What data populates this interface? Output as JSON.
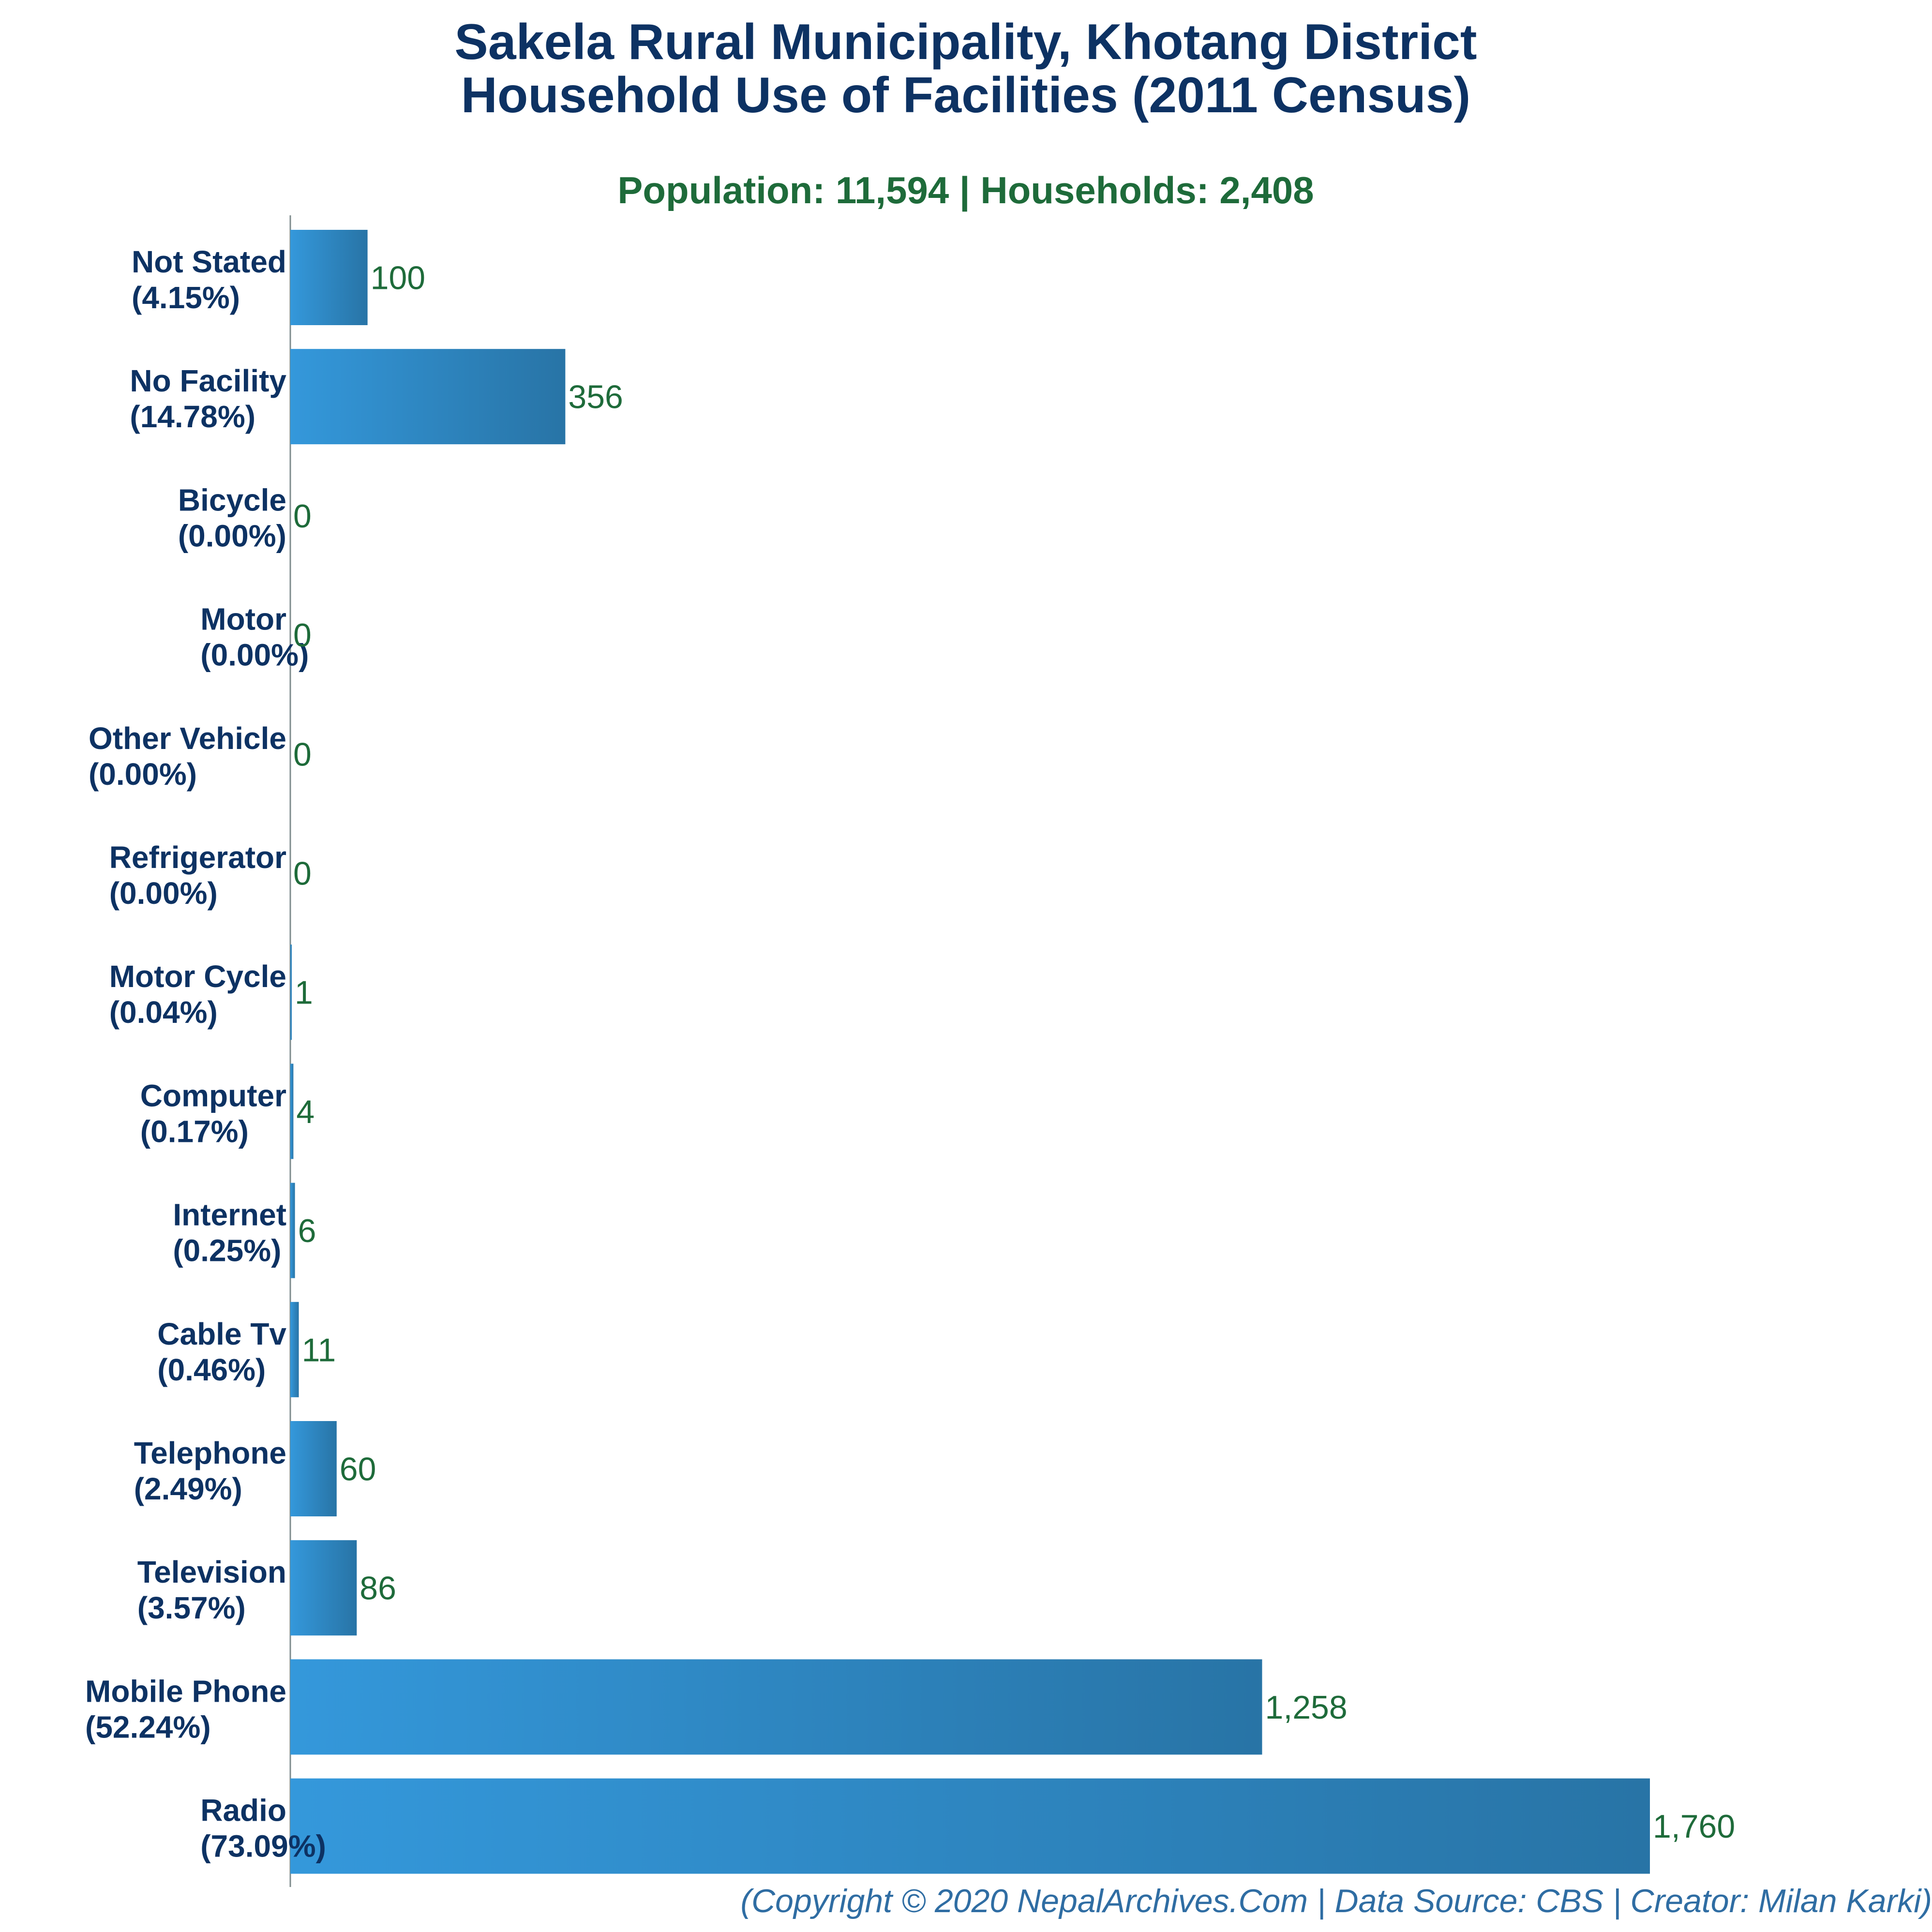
{
  "chart_data": {
    "type": "bar",
    "orientation": "horizontal",
    "title_lines": [
      "Sakela Rural Municipality, Khotang District",
      "Household Use of Facilities (2011 Census)"
    ],
    "subtitle": "Population: 11,594 | Households: 2,408",
    "categories": [
      "Not Stated",
      "No Facility",
      "Bicycle",
      "Motor",
      "Other Vehicle",
      "Refrigerator",
      "Motor Cycle",
      "Computer",
      "Internet",
      "Cable Tv",
      "Telephone",
      "Television",
      "Mobile Phone",
      "Radio"
    ],
    "percent_labels": [
      "(4.15%)",
      "(14.78%)",
      "(0.00%)",
      "(0.00%)",
      "(0.00%)",
      "(0.00%)",
      "(0.04%)",
      "(0.17%)",
      "(0.25%)",
      "(0.46%)",
      "(2.49%)",
      "(3.57%)",
      "(52.24%)",
      "(73.09%)"
    ],
    "values": [
      100,
      356,
      0,
      0,
      0,
      0,
      1,
      4,
      6,
      11,
      60,
      86,
      1258,
      1760
    ],
    "value_labels": [
      "100",
      "356",
      "0",
      "0",
      "0",
      "0",
      "1",
      "4",
      "6",
      "11",
      "60",
      "86",
      "1,258",
      "1,760"
    ],
    "xlim": [
      0,
      2000
    ],
    "grid": false,
    "colors": {
      "bar_start": "#3498db",
      "bar_end": "#2874a6",
      "title": "#0d3263",
      "subtitle": "#1e6b3a",
      "value_label": "#1e6b3a",
      "footer": "#2f6da3",
      "axis": "#7f8c8d"
    }
  },
  "footer": "(Copyright © 2020 NepalArchives.Com | Data Source: CBS | Creator: Milan Karki)"
}
